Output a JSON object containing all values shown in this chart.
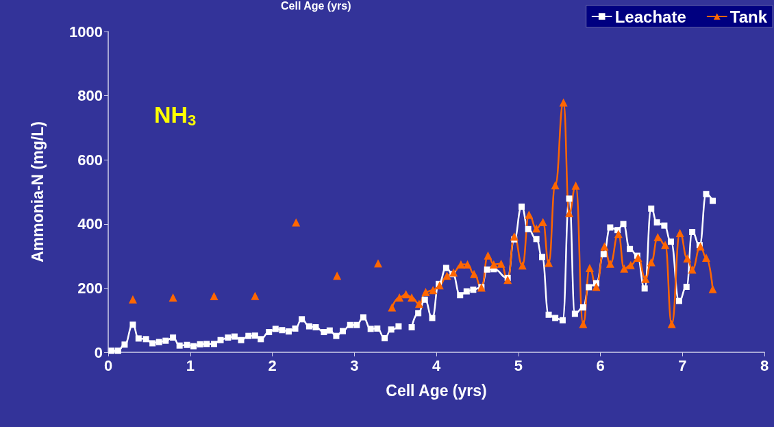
{
  "chart_data": {
    "type": "line",
    "xlabel": "Cell Age (yrs)",
    "ylabel": "Ammonia-N (mg/L)",
    "annotations": [
      "Cell Age (yrs)",
      "NH$_{3}$"
    ],
    "xlim": [
      0,
      8
    ],
    "xticks": [
      0,
      1,
      2,
      3,
      4,
      5,
      6,
      7,
      8
    ],
    "ylim": [
      0,
      1000
    ],
    "yticks": [
      0,
      200,
      400,
      600,
      800,
      1000
    ],
    "grid": false,
    "legend": "top right",
    "line_style": "solid",
    "series": [
      {
        "name": "Leachate",
        "color": "#ffffff",
        "marker": "square",
        "x": [
          0.04,
          0.12,
          0.2,
          0.3,
          0.37,
          0.46,
          0.54,
          0.62,
          0.7,
          0.79,
          0.87,
          0.96,
          1.04,
          1.12,
          1.2,
          1.29,
          1.37,
          1.46,
          1.54,
          1.62,
          1.71,
          1.79,
          1.86,
          1.96,
          2.04,
          2.12,
          2.2,
          2.28,
          2.36,
          2.45,
          2.53,
          2.63,
          2.7,
          2.78,
          2.86,
          2.95,
          3.03,
          3.11,
          3.2,
          3.28,
          3.37,
          3.45,
          3.54,
          3.62,
          3.7,
          3.78,
          3.86,
          3.95,
          4.03,
          4.12,
          4.2,
          4.29,
          4.37,
          4.45,
          4.55,
          4.62,
          4.7,
          4.87,
          4.95,
          5.04,
          5.12,
          5.22,
          5.29,
          5.37,
          5.45,
          5.54,
          5.62,
          5.69,
          5.79,
          5.86,
          5.95,
          6.04,
          6.12,
          6.21,
          6.28,
          6.36,
          6.45,
          6.54,
          6.62,
          6.69,
          6.78,
          6.86,
          6.96,
          7.05,
          7.12,
          7.21,
          7.29,
          7.37
        ],
        "values": [
          5,
          5,
          24,
          86,
          43,
          41,
          28,
          32,
          36,
          46,
          21,
          23,
          19,
          25,
          26,
          26,
          38,
          46,
          49,
          38,
          51,
          52,
          41,
          63,
          73,
          69,
          65,
          74,
          103,
          81,
          78,
          63,
          68,
          51,
          66,
          85,
          85,
          109,
          73,
          74,
          44,
          71,
          81,
          null,
          78,
          122,
          164,
          107,
          213,
          263,
          244,
          178,
          190,
          195,
          203,
          258,
          259,
          232,
          352,
          454,
          384,
          353,
          297,
          117,
          107,
          100,
          479,
          120,
          140,
          203,
          215,
          306,
          389,
          381,
          400,
          322,
          301,
          199,
          448,
          405,
          395,
          345,
          160,
          204,
          375,
          334,
          493,
          472
        ]
      },
      {
        "name": "Tank",
        "color": "#ff6600",
        "marker": "triangle",
        "x": [
          0.3,
          0.55,
          0.79,
          1.04,
          1.29,
          1.54,
          1.79,
          2.04,
          2.29,
          2.54,
          2.79,
          3.04,
          3.29,
          3.38,
          3.46,
          3.55,
          3.63,
          3.7,
          3.79,
          3.87,
          3.96,
          4.04,
          4.13,
          4.21,
          4.3,
          4.38,
          4.46,
          4.55,
          4.63,
          4.7,
          4.79,
          4.87,
          4.95,
          5.05,
          5.13,
          5.22,
          5.3,
          5.37,
          5.45,
          5.55,
          5.62,
          5.7,
          5.79,
          5.87,
          5.95,
          6.05,
          6.12,
          6.22,
          6.29,
          6.37,
          6.46,
          6.55,
          6.62,
          6.7,
          6.79,
          6.87,
          6.97,
          7.06,
          7.12,
          7.22,
          7.29,
          7.37
        ],
        "values": [
          165,
          null,
          171,
          null,
          175,
          null,
          176,
          null,
          405,
          null,
          239,
          null,
          277,
          null,
          140,
          171,
          181,
          171,
          151,
          188,
          194,
          209,
          239,
          249,
          274,
          274,
          244,
          202,
          302,
          274,
          276,
          226,
          361,
          271,
          429,
          386,
          406,
          279,
          521,
          779,
          434,
          520,
          88,
          263,
          204,
          330,
          276,
          369,
          261,
          272,
          295,
          229,
          281,
          359,
          335,
          88,
          372,
          293,
          258,
          330,
          295,
          197
        ]
      }
    ]
  }
}
